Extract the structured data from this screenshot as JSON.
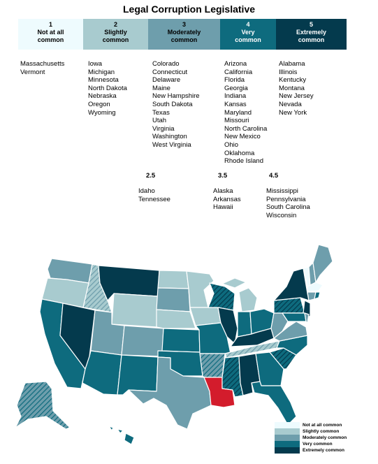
{
  "title": "Legal Corruption Legislative",
  "colors": {
    "c1": "#eefbfe",
    "c2": "#a8cbcf",
    "c3": "#6e9eac",
    "c4": "#0e6b7e",
    "c5": "#043a4d",
    "highlight": "#d31c2c"
  },
  "categories": [
    {
      "num": "1",
      "label1": "Not at all",
      "label2": "common"
    },
    {
      "num": "2",
      "label1": "Slightly",
      "label2": "common"
    },
    {
      "num": "3",
      "label1": "Moderately",
      "label2": "common"
    },
    {
      "num": "4",
      "label1": "Very",
      "label2": "common"
    },
    {
      "num": "5",
      "label1": "Extremely",
      "label2": "common"
    }
  ],
  "lists": {
    "c1": [
      "Massachusetts",
      "Vermont"
    ],
    "c2": [
      "Iowa",
      "Michigan",
      "Minnesota",
      "North Dakota",
      "Nebraska",
      "Oregon",
      "Wyoming"
    ],
    "c3": [
      "Colorado",
      "Connecticut",
      "Delaware",
      "Maine",
      "New Hampshire",
      "South Dakota",
      "Texas",
      "Utah",
      "Virginia",
      "Washington",
      "West Virginia"
    ],
    "c4": [
      "Arizona",
      "California",
      "Florida",
      "Georgia",
      "Indiana",
      "Kansas",
      "Maryland",
      "Missouri",
      "North Carolina",
      "New Mexico",
      "Ohio",
      "Oklahoma",
      "Rhode Island"
    ],
    "c5": [
      "Alabama",
      "Illinois",
      "Kentucky",
      "Montana",
      "New Jersey",
      "Nevada",
      "New York"
    ]
  },
  "halves": [
    {
      "num": "2.5",
      "states": [
        "Idaho",
        "Tennessee"
      ]
    },
    {
      "num": "3.5",
      "states": [
        "Alaska",
        "Arkansas",
        "Hawaii"
      ]
    },
    {
      "num": "4.5",
      "states": [
        "Mississippi",
        "Pennsylvania",
        "South Carolina",
        "Wisconsin"
      ]
    }
  ],
  "legend": [
    "Not at all common",
    "Slightly common",
    "Moderately common",
    "Very common",
    "Extremely common"
  ]
}
